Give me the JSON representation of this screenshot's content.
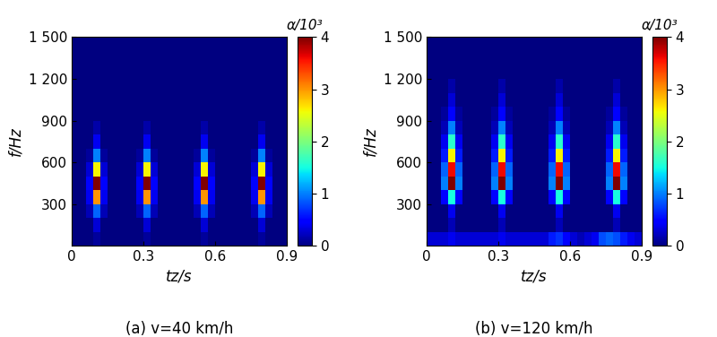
{
  "chart_data": [
    {
      "type": "heatmap",
      "caption": "(a) v=40 km/h",
      "x_label": "tz/s",
      "y_label": "f/Hz",
      "xlim": [
        0,
        0.9
      ],
      "xticks": [
        0,
        0.3,
        0.6,
        0.9
      ],
      "ylim": [
        0,
        1500
      ],
      "yticks": [
        300,
        600,
        900,
        {
          "value": 1200,
          "label": "1 200"
        },
        {
          "value": 1500,
          "label": "1 500"
        }
      ],
      "x_edges": [
        0,
        0.03,
        0.06,
        0.09,
        0.12,
        0.15,
        0.18,
        0.21,
        0.24,
        0.27,
        0.3,
        0.33,
        0.36,
        0.39,
        0.42,
        0.45,
        0.48,
        0.51,
        0.54,
        0.57,
        0.6,
        0.63,
        0.66,
        0.69,
        0.72,
        0.75,
        0.78,
        0.81,
        0.84,
        0.87,
        0.9
      ],
      "y_edges": [
        0,
        100,
        200,
        300,
        400,
        500,
        600,
        700,
        800,
        900,
        1000,
        1100,
        1200,
        1300,
        1400,
        1500
      ],
      "colorbar_label": "α/10³",
      "colorbar_range": [
        0,
        4
      ],
      "colorbar_ticks": [
        0,
        1,
        2,
        3,
        4
      ],
      "cells": [
        [
          0,
          0,
          0,
          0.1,
          0,
          0,
          0,
          0,
          0,
          0,
          0.1,
          0,
          0,
          0,
          0,
          0,
          0,
          0,
          0.1,
          0,
          0,
          0,
          0,
          0,
          0,
          0,
          0.1,
          0,
          0,
          0
        ],
        [
          0,
          0,
          0,
          0.3,
          0,
          0,
          0,
          0,
          0,
          0,
          0.3,
          0,
          0,
          0,
          0,
          0,
          0,
          0,
          0.3,
          0,
          0,
          0,
          0,
          0,
          0,
          0,
          0.3,
          0,
          0,
          0
        ],
        [
          0,
          0,
          0.2,
          0.9,
          0.2,
          0,
          0,
          0,
          0,
          0.2,
          0.9,
          0.2,
          0,
          0,
          0,
          0,
          0,
          0.2,
          0.9,
          0.2,
          0,
          0,
          0,
          0,
          0,
          0.2,
          0.9,
          0.2,
          0,
          0
        ],
        [
          0,
          0,
          0.4,
          3.0,
          0.4,
          0,
          0,
          0,
          0,
          0.4,
          3.0,
          0.4,
          0,
          0,
          0,
          0,
          0,
          0.4,
          3.0,
          0.4,
          0,
          0,
          0,
          0,
          0,
          0.4,
          3.0,
          0.4,
          0,
          0
        ],
        [
          0,
          0,
          0.5,
          4.0,
          0.5,
          0,
          0,
          0,
          0,
          0.5,
          4.0,
          0.5,
          0,
          0,
          0,
          0,
          0,
          0.5,
          4.0,
          0.5,
          0,
          0,
          0,
          0,
          0,
          0.5,
          4.0,
          0.5,
          0,
          0
        ],
        [
          0,
          0,
          0.3,
          2.6,
          0.3,
          0,
          0,
          0,
          0,
          0.3,
          2.6,
          0.3,
          0,
          0,
          0,
          0,
          0,
          0.3,
          2.6,
          0.3,
          0,
          0,
          0,
          0,
          0,
          0.3,
          2.6,
          0.3,
          0,
          0
        ],
        [
          0,
          0,
          0.1,
          1.0,
          0.1,
          0,
          0,
          0,
          0,
          0.1,
          1.0,
          0.1,
          0,
          0,
          0,
          0,
          0,
          0.1,
          1.0,
          0.1,
          0,
          0,
          0,
          0,
          0,
          0.1,
          1.0,
          0.1,
          0,
          0
        ],
        [
          0,
          0,
          0,
          0.4,
          0,
          0,
          0,
          0,
          0,
          0,
          0.4,
          0,
          0,
          0,
          0,
          0,
          0,
          0,
          0.4,
          0,
          0,
          0,
          0,
          0,
          0,
          0,
          0.4,
          0,
          0,
          0
        ],
        [
          0,
          0,
          0,
          0.15,
          0,
          0,
          0,
          0,
          0,
          0,
          0.15,
          0,
          0,
          0,
          0,
          0,
          0,
          0,
          0.15,
          0,
          0,
          0,
          0,
          0,
          0,
          0,
          0.15,
          0,
          0,
          0
        ],
        [
          0,
          0,
          0,
          0,
          0,
          0,
          0,
          0,
          0,
          0,
          0,
          0,
          0,
          0,
          0,
          0,
          0,
          0,
          0,
          0,
          0,
          0,
          0,
          0,
          0,
          0,
          0,
          0,
          0,
          0
        ],
        [
          0,
          0,
          0,
          0,
          0,
          0,
          0,
          0,
          0,
          0,
          0,
          0,
          0,
          0,
          0,
          0,
          0,
          0,
          0,
          0,
          0,
          0,
          0,
          0,
          0,
          0,
          0,
          0,
          0,
          0
        ],
        [
          0,
          0,
          0,
          0,
          0,
          0,
          0,
          0,
          0,
          0,
          0,
          0,
          0,
          0,
          0,
          0,
          0,
          0,
          0,
          0,
          0,
          0,
          0,
          0,
          0,
          0,
          0,
          0,
          0,
          0
        ],
        [
          0,
          0,
          0,
          0,
          0,
          0,
          0,
          0,
          0,
          0,
          0,
          0,
          0,
          0,
          0,
          0,
          0,
          0,
          0,
          0,
          0,
          0,
          0,
          0,
          0,
          0,
          0,
          0,
          0,
          0
        ],
        [
          0,
          0,
          0,
          0,
          0,
          0,
          0,
          0,
          0,
          0,
          0,
          0,
          0,
          0,
          0,
          0,
          0,
          0,
          0,
          0,
          0,
          0,
          0,
          0,
          0,
          0,
          0,
          0,
          0,
          0
        ],
        [
          0,
          0,
          0,
          0,
          0,
          0,
          0,
          0,
          0,
          0,
          0,
          0,
          0,
          0,
          0,
          0,
          0,
          0,
          0,
          0,
          0,
          0,
          0,
          0,
          0,
          0,
          0,
          0,
          0,
          0
        ]
      ]
    },
    {
      "type": "heatmap",
      "caption": "(b) v=120 km/h",
      "x_label": "tz/s",
      "y_label": "f/Hz",
      "xlim": [
        0,
        0.9
      ],
      "xticks": [
        0,
        0.3,
        0.6,
        0.9
      ],
      "ylim": [
        0,
        1500
      ],
      "yticks": [
        300,
        600,
        900,
        {
          "value": 1200,
          "label": "1 200"
        },
        {
          "value": 1500,
          "label": "1 500"
        }
      ],
      "x_edges": [
        0,
        0.03,
        0.06,
        0.09,
        0.12,
        0.15,
        0.18,
        0.21,
        0.24,
        0.27,
        0.3,
        0.33,
        0.36,
        0.39,
        0.42,
        0.45,
        0.48,
        0.51,
        0.54,
        0.57,
        0.6,
        0.63,
        0.66,
        0.69,
        0.72,
        0.75,
        0.78,
        0.81,
        0.84,
        0.87,
        0.9
      ],
      "y_edges": [
        0,
        100,
        200,
        300,
        400,
        500,
        600,
        700,
        800,
        900,
        1000,
        1100,
        1200,
        1300,
        1400,
        1500
      ],
      "colorbar_label": "α/10³",
      "colorbar_range": [
        0,
        4
      ],
      "colorbar_ticks": [
        0,
        1,
        2,
        3,
        4
      ],
      "cells": [
        [
          0.3,
          0.3,
          0.3,
          0.4,
          0.3,
          0.3,
          0.3,
          0.3,
          0.3,
          0.3,
          0.4,
          0.3,
          0.3,
          0.3,
          0.3,
          0.3,
          0.3,
          0.6,
          0.7,
          0.5,
          0.3,
          0.2,
          0.3,
          0.4,
          0.8,
          0.9,
          0.8,
          0.6,
          0.4,
          0.3
        ],
        [
          0,
          0,
          0,
          0.2,
          0,
          0,
          0,
          0,
          0,
          0,
          0.2,
          0,
          0,
          0,
          0,
          0,
          0,
          0,
          0.2,
          0,
          0,
          0,
          0,
          0,
          0,
          0,
          0.2,
          0,
          0,
          0
        ],
        [
          0,
          0,
          0,
          0.4,
          0,
          0,
          0,
          0,
          0,
          0,
          0.4,
          0,
          0,
          0,
          0,
          0,
          0,
          0,
          0.4,
          0,
          0,
          0,
          0,
          0,
          0,
          0,
          0.4,
          0,
          0,
          0
        ],
        [
          0,
          0,
          0.5,
          1.5,
          0.5,
          0,
          0,
          0,
          0,
          0.5,
          1.5,
          0.5,
          0,
          0,
          0,
          0,
          0,
          0.5,
          1.5,
          0.5,
          0,
          0,
          0,
          0,
          0,
          0.5,
          1.5,
          0.5,
          0,
          0
        ],
        [
          0,
          0,
          1.0,
          4.0,
          1.0,
          0,
          0,
          0,
          0,
          1.0,
          4.0,
          1.0,
          0,
          0,
          0,
          0,
          0,
          1.0,
          4.0,
          1.0,
          0,
          0,
          0,
          0,
          0,
          1.0,
          4.0,
          1.0,
          0,
          0
        ],
        [
          0,
          0,
          0.9,
          3.6,
          0.9,
          0,
          0,
          0,
          0,
          0.9,
          3.6,
          0.9,
          0,
          0,
          0,
          0,
          0,
          0.9,
          3.6,
          0.9,
          0,
          0,
          0,
          0,
          0,
          0.9,
          3.6,
          0.9,
          0,
          0
        ],
        [
          0,
          0,
          0.6,
          2.6,
          0.6,
          0,
          0,
          0,
          0,
          0.6,
          2.6,
          0.6,
          0,
          0,
          0,
          0,
          0,
          0.6,
          2.6,
          0.6,
          0,
          0,
          0,
          0,
          0,
          0.6,
          2.6,
          0.6,
          0,
          0
        ],
        [
          0,
          0,
          0.4,
          1.6,
          0.4,
          0,
          0,
          0,
          0,
          0.4,
          1.6,
          0.4,
          0,
          0,
          0,
          0,
          0,
          0.4,
          1.6,
          0.4,
          0,
          0,
          0,
          0,
          0,
          0.4,
          1.6,
          0.4,
          0,
          0
        ],
        [
          0,
          0,
          0.2,
          1.0,
          0.2,
          0,
          0,
          0,
          0,
          0.2,
          1.0,
          0.2,
          0,
          0,
          0,
          0,
          0,
          0.2,
          1.0,
          0.2,
          0,
          0,
          0,
          0,
          0,
          0.2,
          1.0,
          0.2,
          0,
          0
        ],
        [
          0,
          0,
          0.1,
          0.5,
          0.1,
          0,
          0,
          0,
          0,
          0.1,
          0.5,
          0.1,
          0,
          0,
          0,
          0,
          0,
          0.1,
          0.5,
          0.1,
          0,
          0,
          0,
          0,
          0,
          0.1,
          0.5,
          0.1,
          0,
          0
        ],
        [
          0,
          0,
          0,
          0.3,
          0,
          0,
          0,
          0,
          0,
          0,
          0.3,
          0,
          0,
          0,
          0,
          0,
          0,
          0,
          0.3,
          0,
          0,
          0,
          0,
          0,
          0,
          0,
          0.3,
          0,
          0,
          0
        ],
        [
          0,
          0,
          0,
          0.15,
          0,
          0,
          0,
          0,
          0,
          0,
          0.15,
          0,
          0,
          0,
          0,
          0,
          0,
          0,
          0.15,
          0,
          0,
          0,
          0,
          0,
          0,
          0,
          0.15,
          0,
          0,
          0
        ],
        [
          0,
          0,
          0,
          0,
          0,
          0,
          0,
          0,
          0,
          0,
          0,
          0,
          0,
          0,
          0,
          0,
          0,
          0,
          0,
          0,
          0,
          0,
          0,
          0,
          0,
          0,
          0,
          0,
          0,
          0
        ],
        [
          0,
          0,
          0,
          0,
          0,
          0,
          0,
          0,
          0,
          0,
          0,
          0,
          0,
          0,
          0,
          0,
          0,
          0,
          0,
          0,
          0,
          0,
          0,
          0,
          0,
          0,
          0,
          0,
          0,
          0
        ],
        [
          0,
          0,
          0,
          0,
          0,
          0,
          0,
          0,
          0,
          0,
          0,
          0,
          0,
          0,
          0,
          0,
          0,
          0,
          0,
          0,
          0,
          0,
          0,
          0,
          0,
          0,
          0,
          0,
          0,
          0
        ]
      ]
    }
  ]
}
